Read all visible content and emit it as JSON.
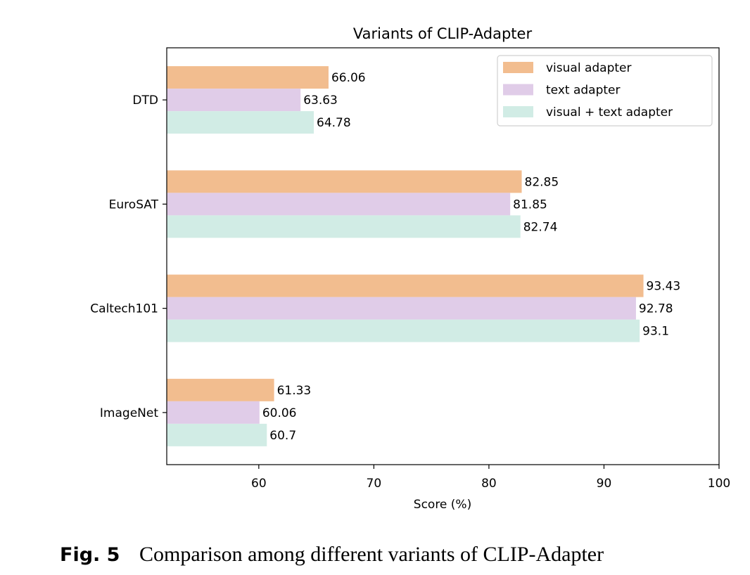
{
  "chart_data": {
    "type": "bar",
    "orientation": "horizontal",
    "title": "Variants of CLIP-Adapter",
    "xlabel": "Score (%)",
    "ylabel": "",
    "xlim": [
      52,
      100
    ],
    "xticks": [
      60,
      70,
      80,
      90,
      100
    ],
    "grid": false,
    "legend_position": "top-right",
    "categories": [
      "DTD",
      "EuroSAT",
      "Caltech101",
      "ImageNet"
    ],
    "series": [
      {
        "name": "visual adapter",
        "color": "#f2bd8f",
        "values": [
          66.06,
          82.85,
          93.43,
          61.33
        ],
        "labels": [
          "66.06",
          "82.85",
          "93.43",
          "61.33"
        ]
      },
      {
        "name": "text adapter",
        "color": "#e0cce8",
        "values": [
          63.63,
          81.85,
          92.78,
          60.06
        ],
        "labels": [
          "63.63",
          "81.85",
          "92.78",
          "60.06"
        ]
      },
      {
        "name": "visual + text adapter",
        "color": "#d1ece5",
        "values": [
          64.78,
          82.74,
          93.1,
          60.7
        ],
        "labels": [
          "64.78",
          "82.74",
          "93.1",
          "60.7"
        ]
      }
    ]
  },
  "caption": {
    "label": "Fig. 5",
    "text": "Comparison among different variants of CLIP-Adapter"
  }
}
